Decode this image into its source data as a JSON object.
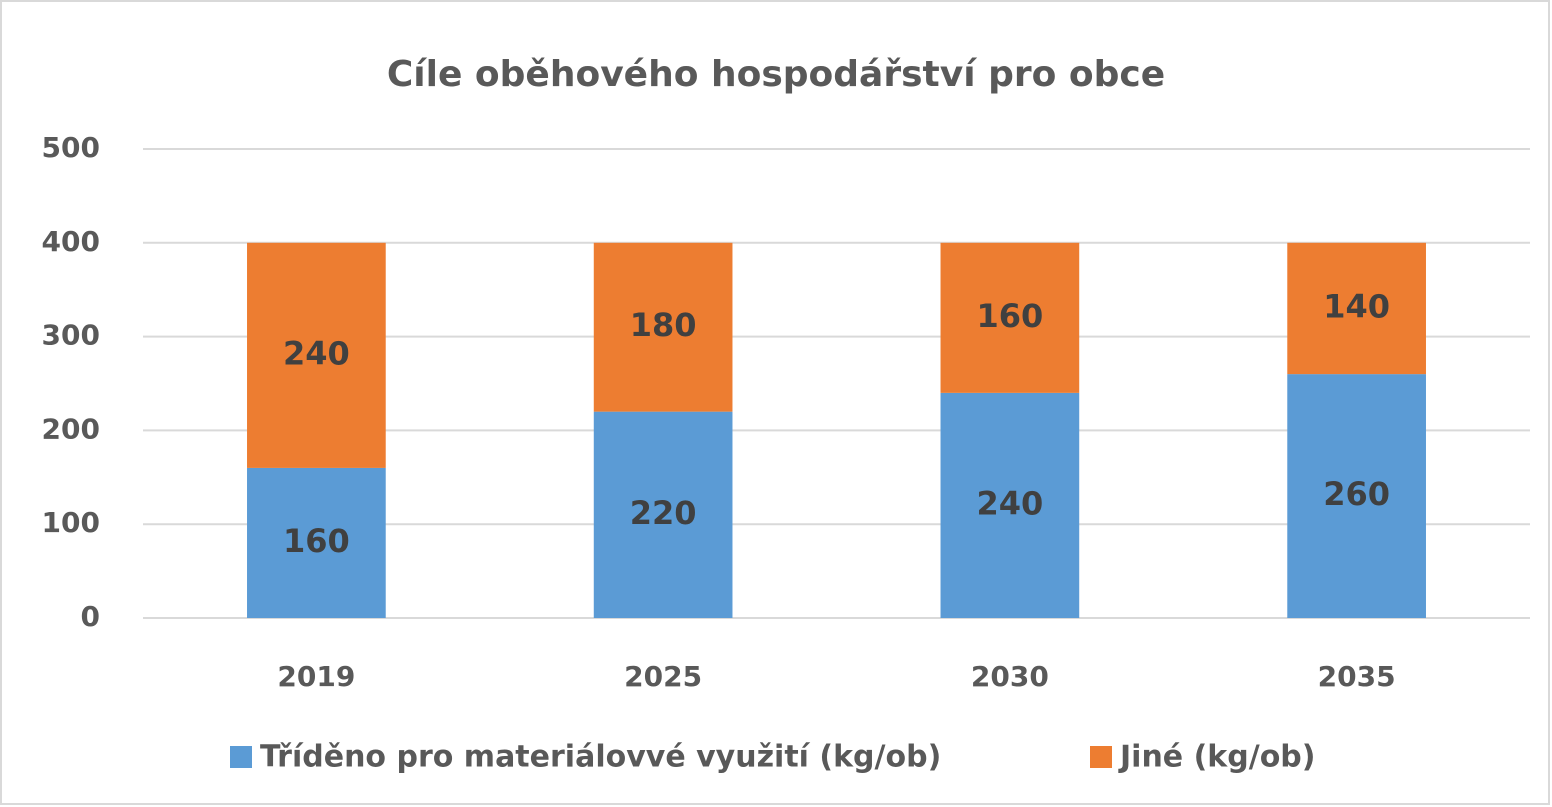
{
  "chart_data": {
    "type": "bar",
    "stacked": true,
    "title": "Cíle oběhového hospodářství pro obce",
    "categories": [
      "2019",
      "2025",
      "2030",
      "2035"
    ],
    "series": [
      {
        "name": "Tříděno pro materiálovvé využití (kg/ob)",
        "color": "#5b9bd5",
        "values": [
          160,
          220,
          240,
          260
        ]
      },
      {
        "name": "Jiné (kg/ob)",
        "color": "#ed7d31",
        "values": [
          240,
          180,
          160,
          140
        ]
      }
    ],
    "ylim": [
      0,
      500
    ],
    "yticks": [
      0,
      100,
      200,
      300,
      400,
      500
    ],
    "grid": true,
    "legend": "bottom"
  }
}
